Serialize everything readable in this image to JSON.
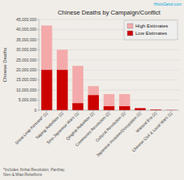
{
  "chart_data": {
    "type": "bar",
    "title": "Chinese Deaths by Campaign/Conflict",
    "ylabel": "Chinese Deaths",
    "annotations": [
      "HistoGand.com",
      "*Includes Xinhai Revolution, Panthay,\nNien & Miao Rebellions"
    ],
    "categories": [
      "Great Leap Forward* (1)",
      "Taiping Rebellion (2)",
      "Sino-Japanese Wars (1)",
      "Qinghai Rebellion (2)",
      "Communist Revolution (2)",
      "Cultural Revolution (2)",
      "Japanese Invasion/Occupation (2)",
      "Warlord Era (2)",
      "Chinese Civil & Local Wars (1)"
    ],
    "series": [
      {
        "name": "High Estimates",
        "color": "#f4aaaa",
        "values": [
          42000000,
          30000000,
          22000000,
          12000000,
          8000000,
          8000000,
          1200000,
          500000,
          200000
        ]
      },
      {
        "name": "Low Estimates",
        "color": "#cc0000",
        "values": [
          20000000,
          20000000,
          3500000,
          7500000,
          2000000,
          2000000,
          1000000,
          350000,
          100000
        ]
      }
    ],
    "ylim": [
      0,
      45000000
    ],
    "yticks": [
      0,
      {
        "value": 5000000,
        "label": "5,000,000"
      },
      {
        "value": 10000000,
        "label": "10,000,000"
      },
      {
        "value": 15000000,
        "label": "15,000,000"
      },
      {
        "value": 20000000,
        "label": "20,000,000"
      },
      {
        "value": 25000000,
        "label": "25,000,000"
      },
      {
        "value": 30000000,
        "label": "30,000,000"
      },
      {
        "value": 35000000,
        "label": "35,000,000"
      },
      {
        "value": 40000000,
        "label": "40,000,000"
      },
      {
        "value": 45000000,
        "label": "45,000,000"
      }
    ],
    "grid": true,
    "legend": "upper right"
  }
}
